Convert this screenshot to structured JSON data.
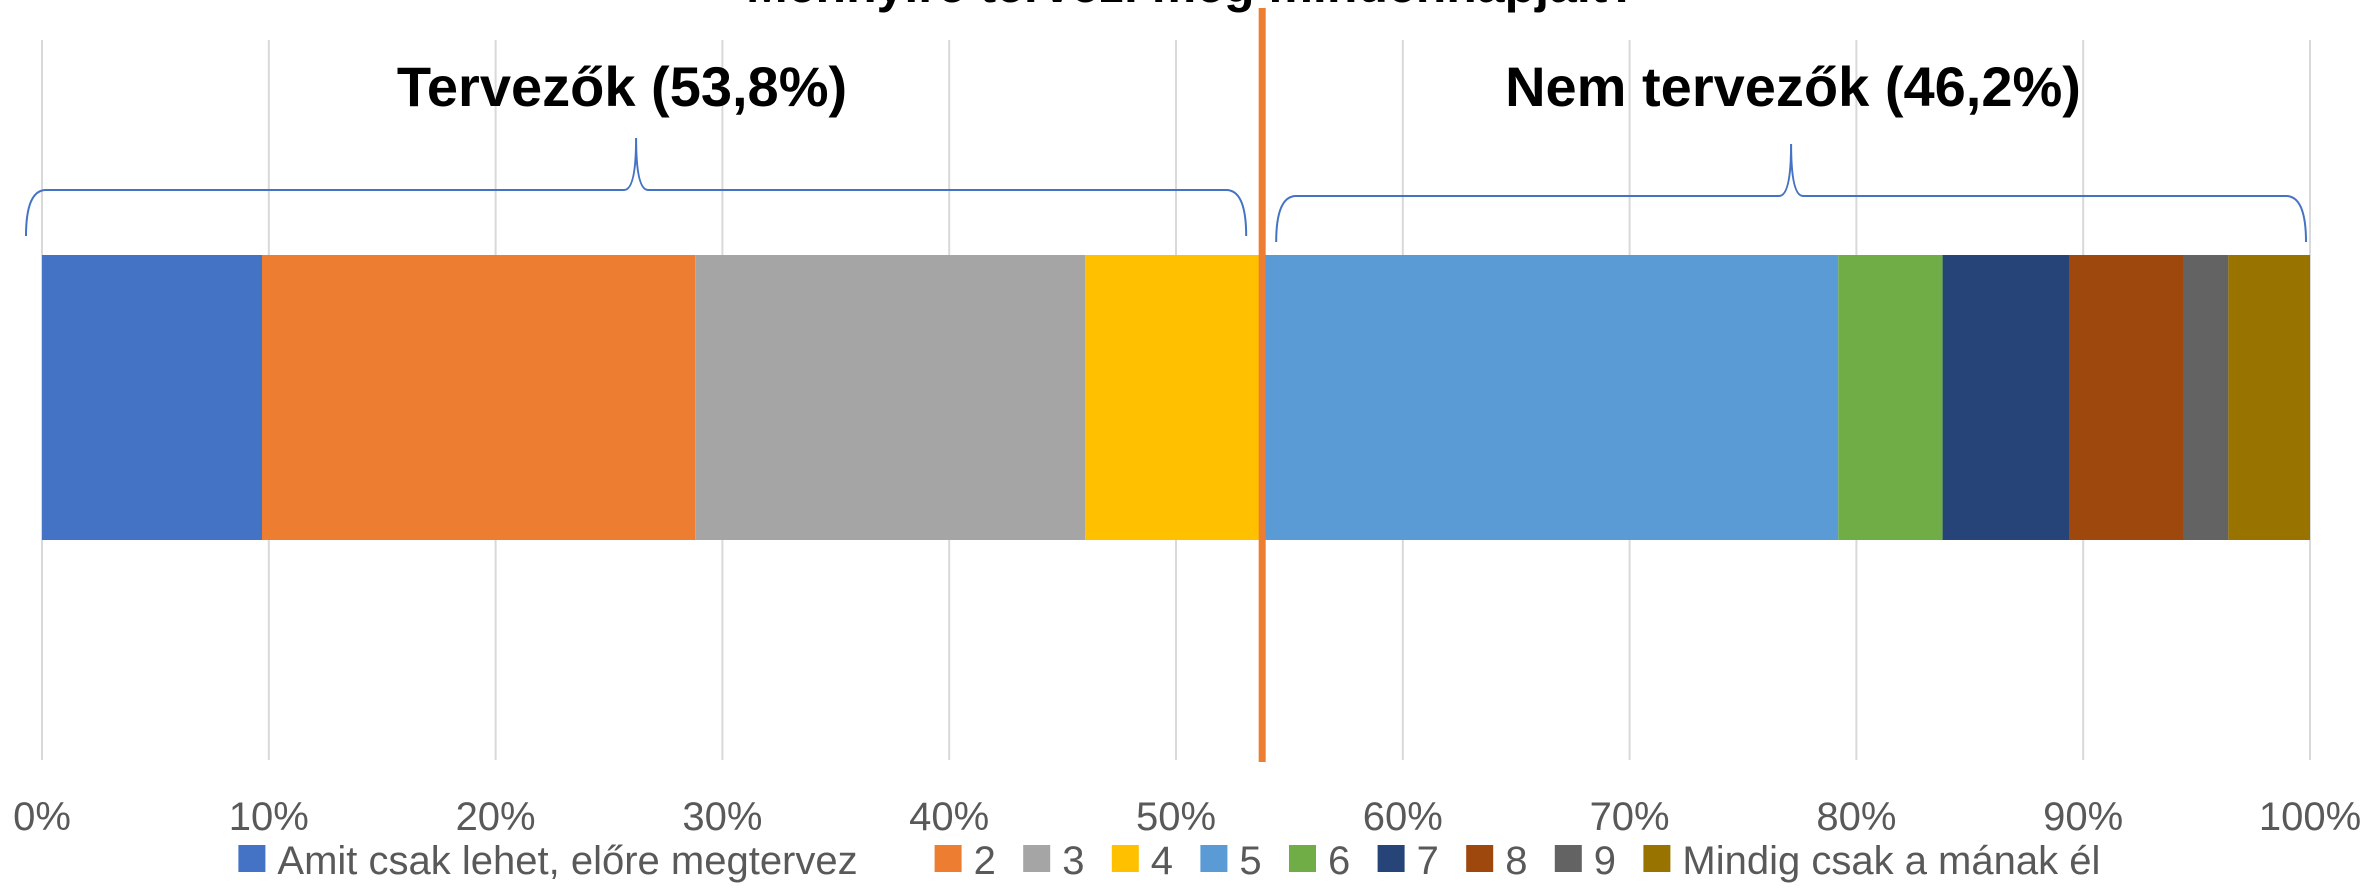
{
  "chart_data": {
    "type": "bar",
    "orientation": "horizontal",
    "stacked": true,
    "title": "Mennyire tervezi meg mindennapjait?",
    "xlim": [
      0,
      100
    ],
    "x_ticks": [
      0,
      10,
      20,
      30,
      40,
      50,
      60,
      70,
      80,
      90,
      100
    ],
    "x_tick_labels": [
      "0%",
      "10%",
      "20%",
      "30%",
      "40%",
      "50%",
      "60%",
      "70%",
      "80%",
      "90%",
      "100%"
    ],
    "grid": true,
    "legend_position": "bottom",
    "series": [
      {
        "name": "Amit csak lehet, előre megtervez",
        "value": 9.7,
        "color": "#4472C4"
      },
      {
        "name": "2",
        "value": 19.1,
        "color": "#ED7D31"
      },
      {
        "name": "3",
        "value": 17.2,
        "color": "#A5A5A5"
      },
      {
        "name": "4",
        "value": 7.8,
        "color": "#FFC000"
      },
      {
        "name": "5",
        "value": 25.4,
        "color": "#5B9BD5"
      },
      {
        "name": "6",
        "value": 4.6,
        "color": "#70AD47"
      },
      {
        "name": "7",
        "value": 5.6,
        "color": "#264478"
      },
      {
        "name": "8",
        "value": 5.0,
        "color": "#9E480E"
      },
      {
        "name": "9",
        "value": 2.0,
        "color": "#636363"
      },
      {
        "name": "Mindig csak a mának él",
        "value": 3.6,
        "color": "#997300"
      }
    ],
    "divider": {
      "value": 53.8,
      "color": "#ED7D31"
    },
    "groups": [
      {
        "label": "Tervezők (53,8%)",
        "from": 0,
        "to": 53.8
      },
      {
        "label": "Nem tervezők (46,2%)",
        "from": 53.8,
        "to": 100
      }
    ],
    "colors": {
      "grid": "#D9D9D9",
      "brace": "#4472C4",
      "text": "#000000",
      "tick_text": "#595959"
    }
  }
}
